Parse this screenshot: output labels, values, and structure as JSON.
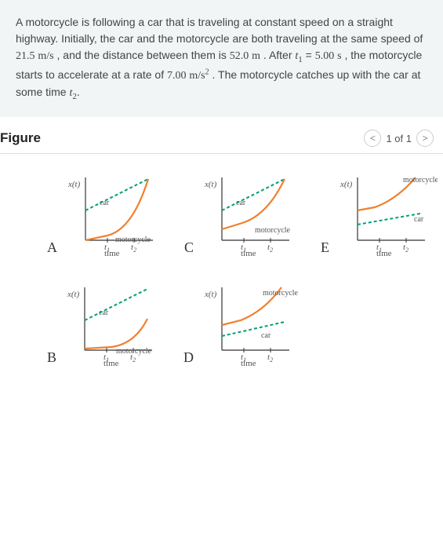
{
  "problem": {
    "text_pre": "A motorcycle is following a car that is traveling at constant speed on a straight highway. Initially, the car and the motorcycle are both traveling at the same speed of ",
    "speed_val": "21.5",
    "speed_unit": "m/s",
    "text_mid1": " , and the distance between them is ",
    "dist_val": "52.0",
    "dist_unit": "m",
    "text_mid2": " . After ",
    "t1_var": "t",
    "t1_sub": "1",
    "t1_eq": " = ",
    "t1_val": "5.00",
    "t1_unit": "s",
    "text_mid3": " , the motorcycle starts to accelerate at a rate of ",
    "accel_val": "7.00",
    "accel_unit_base": "m/s",
    "accel_unit_sup": "2",
    "text_mid4": " . The motorcycle catches up with the car at some time ",
    "t2_var": "t",
    "t2_sub": "2",
    "text_end": "."
  },
  "figure_header": {
    "title": "Figure",
    "pager_prev": "<",
    "pager_text": "1 of 1",
    "pager_next": ">"
  },
  "chart_labels": {
    "ylabel": "x(t)",
    "xlabel": "time",
    "t1": "t",
    "t1sub": "1",
    "t2": "t",
    "t2sub": "2",
    "car": "car",
    "motorcycle": "motorcycle"
  },
  "charts": [
    {
      "letter": "A",
      "car_top": true,
      "moto_curve": "low_up"
    },
    {
      "letter": "C",
      "car_top": true,
      "moto_curve": "mid_up"
    },
    {
      "letter": "E",
      "car_top": false,
      "moto_curve": "high_up"
    },
    {
      "letter": "B",
      "car_top": true,
      "moto_curve": "flat_up"
    },
    {
      "letter": "D",
      "car_top": false,
      "moto_curve": "high_up_d"
    }
  ],
  "colors": {
    "car": "#00a078",
    "motorcycle": "#f08030",
    "axis": "#333333",
    "text": "#555555"
  }
}
